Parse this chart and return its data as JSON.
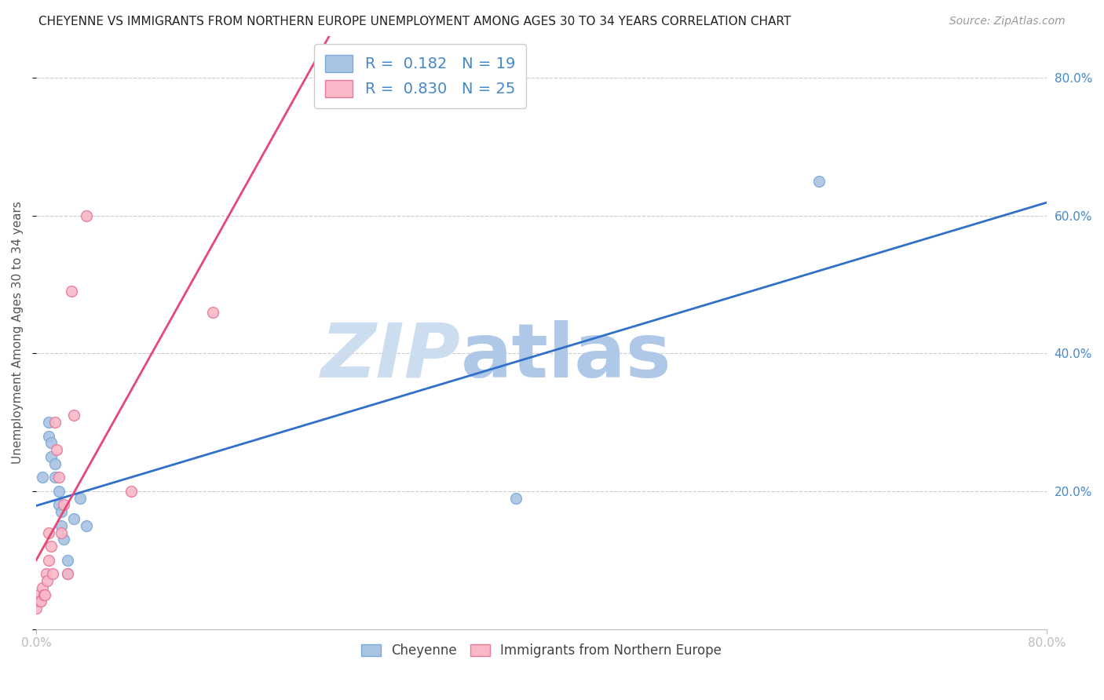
{
  "title": "CHEYENNE VS IMMIGRANTS FROM NORTHERN EUROPE UNEMPLOYMENT AMONG AGES 30 TO 34 YEARS CORRELATION CHART",
  "source": "Source: ZipAtlas.com",
  "ylabel": "Unemployment Among Ages 30 to 34 years",
  "xlim": [
    0.0,
    0.8
  ],
  "ylim": [
    0.0,
    0.86
  ],
  "grid_color": "#cccccc",
  "background_color": "#ffffff",
  "cheyenne_color": "#aac4e4",
  "cheyenne_edge_color": "#7aaad8",
  "immigrants_color": "#f8b8c8",
  "immigrants_edge_color": "#e87898",
  "cheyenne_line_color": "#3070c8",
  "immigrants_line_color": "#e84878",
  "cheyenne_R": 0.182,
  "cheyenne_N": 19,
  "immigrants_R": 0.83,
  "immigrants_N": 25,
  "watermark_zip": "ZIP",
  "watermark_atlas": "atlas",
  "watermark_color_zip": "#ccdcee",
  "watermark_color_atlas": "#b8cce0",
  "cheyenne_x": [
    0.005,
    0.01,
    0.01,
    0.012,
    0.012,
    0.015,
    0.015,
    0.018,
    0.018,
    0.02,
    0.02,
    0.022,
    0.025,
    0.025,
    0.03,
    0.035,
    0.04,
    0.38,
    0.62
  ],
  "cheyenne_y": [
    0.22,
    0.3,
    0.28,
    0.27,
    0.25,
    0.24,
    0.22,
    0.2,
    0.18,
    0.17,
    0.15,
    0.13,
    0.1,
    0.08,
    0.16,
    0.19,
    0.15,
    0.19,
    0.65
  ],
  "immigrants_x": [
    0.0,
    0.0,
    0.002,
    0.003,
    0.004,
    0.005,
    0.006,
    0.007,
    0.008,
    0.009,
    0.01,
    0.01,
    0.012,
    0.013,
    0.015,
    0.016,
    0.018,
    0.02,
    0.022,
    0.025,
    0.028,
    0.03,
    0.04,
    0.075,
    0.14
  ],
  "immigrants_y": [
    0.04,
    0.03,
    0.05,
    0.04,
    0.04,
    0.06,
    0.05,
    0.05,
    0.08,
    0.07,
    0.14,
    0.1,
    0.12,
    0.08,
    0.3,
    0.26,
    0.22,
    0.14,
    0.18,
    0.08,
    0.49,
    0.31,
    0.6,
    0.2,
    0.46
  ],
  "cheyenne_label": "Cheyenne",
  "immigrants_label": "Immigrants from Northern Europe",
  "title_fontsize": 11,
  "source_fontsize": 10,
  "axis_label_fontsize": 11,
  "tick_fontsize": 11,
  "marker_size": 100,
  "blue_text_color": "#4488cc",
  "dark_text_color": "#333333"
}
